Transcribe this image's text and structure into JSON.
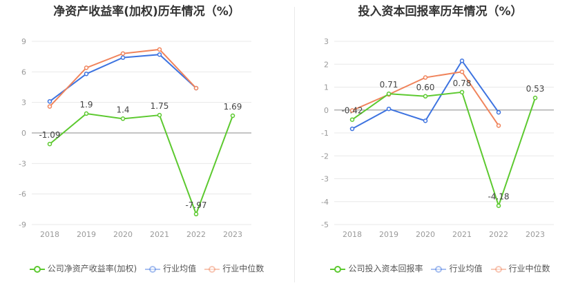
{
  "chart_data": [
    {
      "type": "line",
      "title": "净资产收益率(加权)历年情况（%）",
      "categories": [
        "2018",
        "2019",
        "2020",
        "2021",
        "2022",
        "2023"
      ],
      "y_ticks": [
        9,
        6,
        3,
        0,
        -3,
        -6,
        -9
      ],
      "ylim": [
        -9,
        9
      ],
      "grid": true,
      "legend_position": "bottom",
      "series": [
        {
          "name": "公司净资产收益率(加权)",
          "color": "#5cc92f",
          "values": [
            -1.09,
            1.9,
            1.4,
            1.75,
            -7.97,
            1.69
          ],
          "labels": [
            "-1.09",
            "1.9",
            "1.4",
            "1.75",
            "-7.97",
            "1.69"
          ]
        },
        {
          "name": "行业均值",
          "color": "#3d73e0",
          "values": [
            3.1,
            5.8,
            7.4,
            7.7,
            4.4,
            null
          ]
        },
        {
          "name": "行业中位数",
          "color": "#f0845c",
          "values": [
            2.6,
            6.4,
            7.8,
            8.2,
            4.4,
            null
          ]
        }
      ]
    },
    {
      "type": "line",
      "title": "投入资本回报率历年情况（%）",
      "categories": [
        "2018",
        "2019",
        "2020",
        "2021",
        "2022",
        "2023"
      ],
      "y_ticks": [
        3,
        2,
        1,
        0,
        -1,
        -2,
        -3,
        -4,
        -5
      ],
      "ylim": [
        -5,
        3
      ],
      "grid": true,
      "legend_position": "bottom",
      "series": [
        {
          "name": "公司投入资本回报率",
          "color": "#5cc92f",
          "values": [
            -0.42,
            0.71,
            0.6,
            0.78,
            -4.18,
            0.53
          ],
          "labels": [
            "-0.42",
            "0.71",
            "0.60",
            "0.78",
            "-4.18",
            "0.53"
          ]
        },
        {
          "name": "行业均值",
          "color": "#3d73e0",
          "values": [
            -0.82,
            0.05,
            -0.47,
            2.15,
            -0.1,
            null
          ]
        },
        {
          "name": "行业中位数",
          "color": "#f0845c",
          "values": [
            -0.02,
            0.68,
            1.42,
            1.67,
            -0.68,
            null
          ]
        }
      ]
    }
  ]
}
